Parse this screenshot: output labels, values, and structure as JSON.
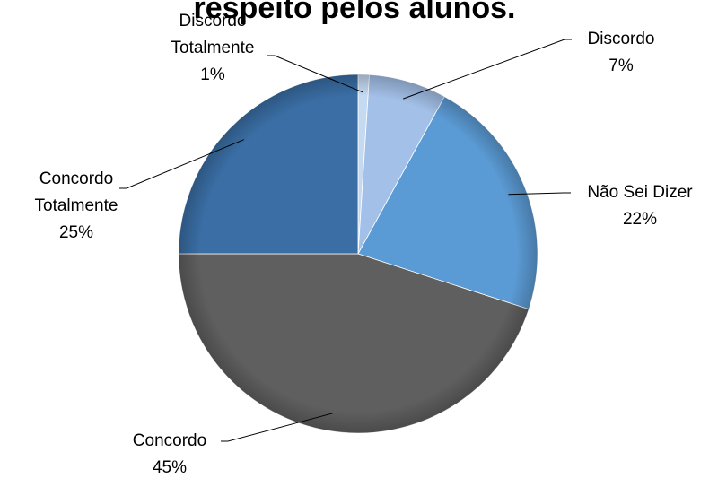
{
  "chart_data": {
    "type": "pie",
    "title": "respeito pelos alunos.",
    "start_angle_deg": 0,
    "direction": "clockwise",
    "slices": [
      {
        "label_lines": [
          "Discordo",
          "Totalmente"
        ],
        "value": 1,
        "percent_label": "1%",
        "color": "#c5d9f1"
      },
      {
        "label_lines": [
          "Discordo"
        ],
        "value": 7,
        "percent_label": "7%",
        "color": "#a3c0e8"
      },
      {
        "label_lines": [
          "Não Sei Dizer"
        ],
        "value": 22,
        "percent_label": "22%",
        "color": "#5b9bd5"
      },
      {
        "label_lines": [
          "Concordo"
        ],
        "value": 45,
        "percent_label": "45%",
        "color": "#5f5f5f"
      },
      {
        "label_lines": [
          "Concordo",
          "Totalmente"
        ],
        "value": 25,
        "percent_label": "25%",
        "color": "#3a6ea5"
      }
    ]
  }
}
